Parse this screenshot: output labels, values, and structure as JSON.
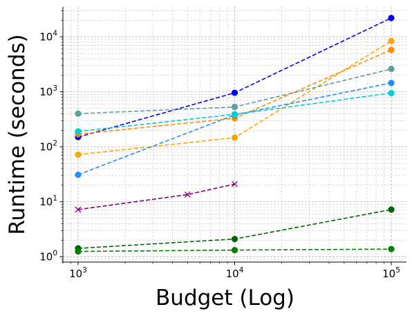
{
  "chart_data": {
    "type": "line",
    "title": "",
    "xlabel": "Budget (Log)",
    "ylabel": "Runtime (seconds)",
    "xscale": "log",
    "yscale": "log",
    "xlim": [
      800,
      125000
    ],
    "ylim": [
      0.8,
      35000
    ],
    "grid": true,
    "legend": "none",
    "x_ticks": [
      {
        "value": 1000,
        "base": "10",
        "exp": "3"
      },
      {
        "value": 10000,
        "base": "10",
        "exp": "4"
      },
      {
        "value": 100000,
        "base": "10",
        "exp": "5"
      }
    ],
    "y_ticks": [
      {
        "value": 1,
        "base": "10",
        "exp": "0"
      },
      {
        "value": 10,
        "base": "10",
        "exp": "1"
      },
      {
        "value": 100,
        "base": "10",
        "exp": "2"
      },
      {
        "value": 1000,
        "base": "10",
        "exp": "3"
      },
      {
        "value": 10000,
        "base": "10",
        "exp": "4"
      }
    ],
    "series": [
      {
        "color": "#0000ee",
        "marker": "circle",
        "x": [
          1000,
          10000,
          100000
        ],
        "y": [
          150,
          960,
          22000
        ]
      },
      {
        "color": "#ffa500",
        "marker": "circle",
        "x": [
          1000,
          10000,
          100000
        ],
        "y": [
          72,
          147,
          8400
        ]
      },
      {
        "color": "#ff8c00",
        "marker": "circle",
        "x": [
          1000,
          10000,
          100000
        ],
        "y": [
          170,
          330,
          5800
        ]
      },
      {
        "color": "#5f9ea0",
        "marker": "circle",
        "x": [
          1000,
          10000,
          100000
        ],
        "y": [
          400,
          530,
          2600
        ]
      },
      {
        "color": "#1e90ff",
        "marker": "circle",
        "x": [
          1000,
          10000,
          100000
        ],
        "y": [
          31,
          380,
          1450
        ]
      },
      {
        "color": "#00ced1",
        "marker": "circle",
        "x": [
          1000,
          10000,
          100000
        ],
        "y": [
          190,
          390,
          950
        ]
      },
      {
        "color": "#800080",
        "marker": "x",
        "x": [
          1000,
          5000,
          10000
        ],
        "y": [
          7.2,
          13.5,
          21
        ]
      },
      {
        "color": "#006400",
        "marker": "circle",
        "x": [
          1000,
          10000,
          100000
        ],
        "y": [
          1.42,
          2.1,
          7.2
        ]
      },
      {
        "color": "#008000",
        "marker": "circle",
        "x": [
          1000,
          10000,
          100000
        ],
        "y": [
          1.25,
          1.32,
          1.38
        ]
      }
    ]
  }
}
